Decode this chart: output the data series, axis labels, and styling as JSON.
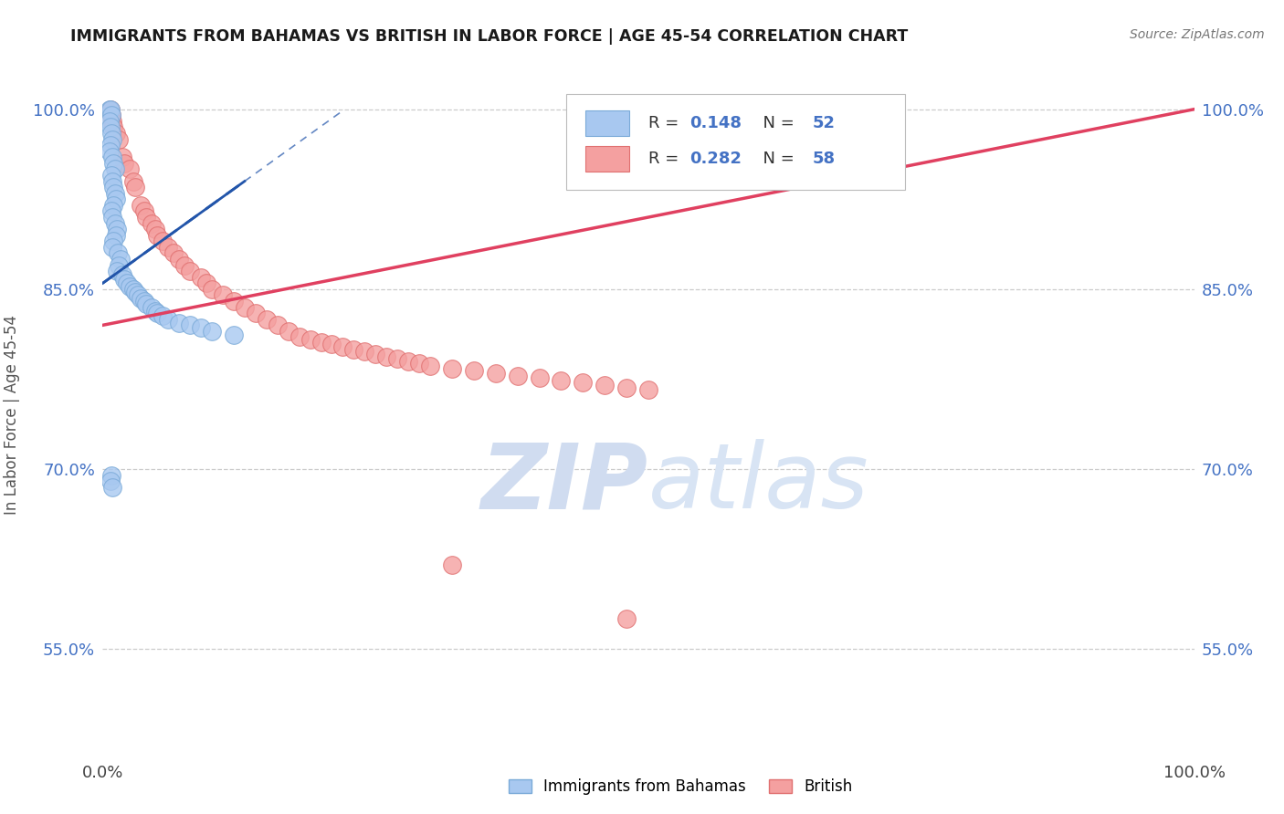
{
  "title": "IMMIGRANTS FROM BAHAMAS VS BRITISH IN LABOR FORCE | AGE 45-54 CORRELATION CHART",
  "source": "Source: ZipAtlas.com",
  "ylabel": "In Labor Force | Age 45-54",
  "xlim": [
    0.0,
    1.0
  ],
  "ylim": [
    0.46,
    1.03
  ],
  "yticks": [
    0.55,
    0.7,
    0.85,
    1.0
  ],
  "ytick_labels": [
    "55.0%",
    "70.0%",
    "85.0%",
    "100.0%"
  ],
  "xtick_labels": [
    "0.0%",
    "100.0%"
  ],
  "blue_color": "#A8C8F0",
  "pink_color": "#F4A0A0",
  "blue_edge": "#7AAAD8",
  "pink_edge": "#E07070",
  "blue_line_color": "#2255AA",
  "pink_line_color": "#E04060",
  "legend_R1": "R = 0.148",
  "legend_N1": "N = 52",
  "legend_R2": "R = 0.282",
  "legend_N2": "N = 58",
  "label1": "Immigrants from Bahamas",
  "label2": "British",
  "watermark_zip": "ZIP",
  "watermark_atlas": "atlas",
  "watermark_color": "#D0DCF0",
  "grid_color": "#CCCCCC",
  "background_color": "#FFFFFF",
  "blue_x": [
    0.006,
    0.007,
    0.008,
    0.006,
    0.007,
    0.008,
    0.009,
    0.007,
    0.006,
    0.009,
    0.01,
    0.011,
    0.008,
    0.009,
    0.01,
    0.011,
    0.012,
    0.01,
    0.008,
    0.009,
    0.011,
    0.013,
    0.012,
    0.01,
    0.009,
    0.014,
    0.016,
    0.015,
    0.013,
    0.018,
    0.02,
    0.022,
    0.025,
    0.028,
    0.03,
    0.032,
    0.035,
    0.038,
    0.04,
    0.045,
    0.048,
    0.05,
    0.055,
    0.06,
    0.07,
    0.08,
    0.09,
    0.1,
    0.12,
    0.008,
    0.007,
    0.009
  ],
  "blue_y": [
    1.0,
    1.0,
    0.995,
    0.99,
    0.985,
    0.98,
    0.975,
    0.97,
    0.965,
    0.96,
    0.955,
    0.95,
    0.945,
    0.94,
    0.935,
    0.93,
    0.925,
    0.92,
    0.915,
    0.91,
    0.905,
    0.9,
    0.895,
    0.89,
    0.885,
    0.88,
    0.875,
    0.87,
    0.865,
    0.862,
    0.858,
    0.855,
    0.852,
    0.85,
    0.848,
    0.845,
    0.842,
    0.84,
    0.838,
    0.835,
    0.832,
    0.83,
    0.828,
    0.825,
    0.822,
    0.82,
    0.818,
    0.815,
    0.812,
    0.695,
    0.69,
    0.685
  ],
  "pink_x": [
    0.007,
    0.008,
    0.009,
    0.01,
    0.012,
    0.015,
    0.018,
    0.02,
    0.025,
    0.028,
    0.03,
    0.035,
    0.038,
    0.04,
    0.045,
    0.048,
    0.05,
    0.055,
    0.06,
    0.065,
    0.07,
    0.075,
    0.08,
    0.09,
    0.095,
    0.1,
    0.11,
    0.12,
    0.13,
    0.14,
    0.15,
    0.16,
    0.17,
    0.18,
    0.19,
    0.2,
    0.21,
    0.22,
    0.23,
    0.24,
    0.25,
    0.26,
    0.27,
    0.28,
    0.29,
    0.3,
    0.32,
    0.34,
    0.36,
    0.38,
    0.4,
    0.42,
    0.44,
    0.46,
    0.48,
    0.5,
    0.32,
    0.48
  ],
  "pink_y": [
    1.0,
    0.995,
    0.99,
    0.985,
    0.98,
    0.975,
    0.96,
    0.955,
    0.95,
    0.94,
    0.935,
    0.92,
    0.915,
    0.91,
    0.905,
    0.9,
    0.895,
    0.89,
    0.885,
    0.88,
    0.875,
    0.87,
    0.865,
    0.86,
    0.855,
    0.85,
    0.845,
    0.84,
    0.835,
    0.83,
    0.825,
    0.82,
    0.815,
    0.81,
    0.808,
    0.806,
    0.804,
    0.802,
    0.8,
    0.798,
    0.796,
    0.794,
    0.792,
    0.79,
    0.788,
    0.786,
    0.784,
    0.782,
    0.78,
    0.778,
    0.776,
    0.774,
    0.772,
    0.77,
    0.768,
    0.766,
    0.62,
    0.575
  ],
  "pink_line_x0": 0.0,
  "pink_line_y0": 0.82,
  "pink_line_x1": 1.0,
  "pink_line_y1": 1.0,
  "blue_line_x0": 0.0,
  "blue_line_y0": 0.855,
  "blue_line_x1": 0.13,
  "blue_line_y1": 0.94
}
